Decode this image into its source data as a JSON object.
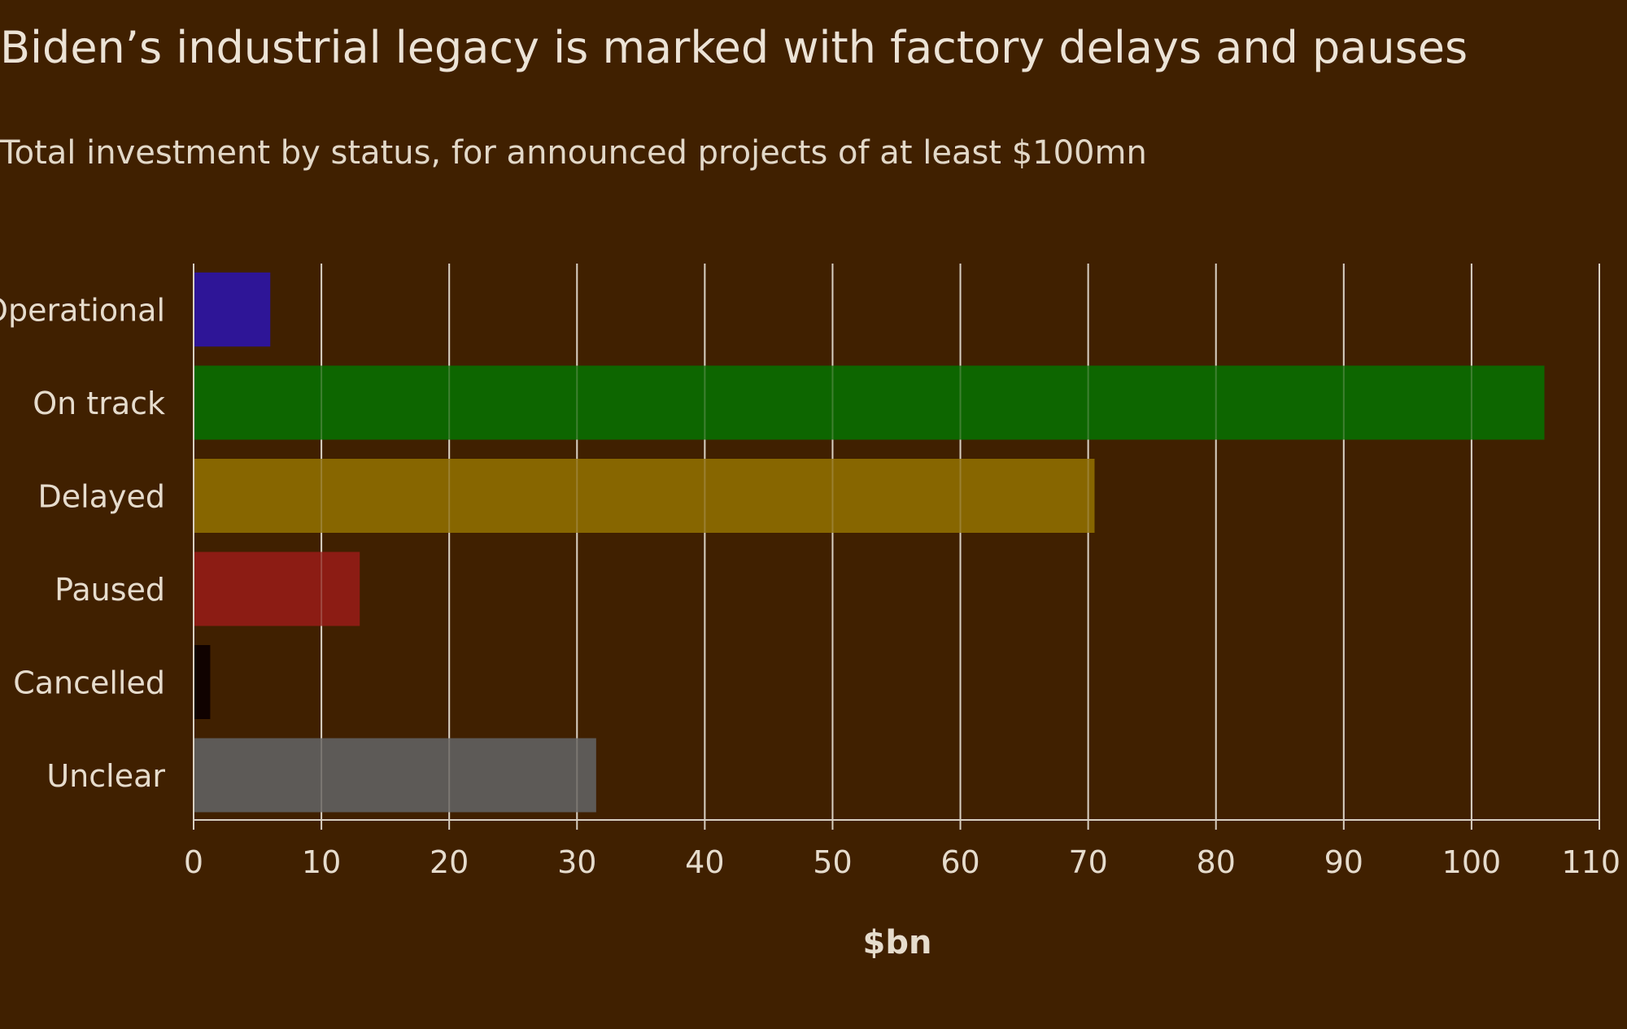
{
  "title": "Biden’s industrial legacy is marked with factory delays and pauses",
  "subtitle": "Total investment by status, for announced projects of at least $100mn",
  "chart_data": {
    "type": "bar",
    "orientation": "horizontal",
    "title": "Biden’s industrial legacy is marked with factory delays and pauses",
    "subtitle": "Total investment by status, for announced projects of at least $100mn",
    "xlabel": "$bn",
    "ylabel": "",
    "xlim": [
      0,
      110
    ],
    "xticks": [
      0,
      10,
      20,
      30,
      40,
      50,
      60,
      70,
      80,
      90,
      100,
      110
    ],
    "grid": true,
    "categories": [
      "Operational",
      "On track",
      "Delayed",
      "Paused",
      "Cancelled",
      "Unclear"
    ],
    "values": [
      6.0,
      105.7,
      70.5,
      13.0,
      1.3,
      31.5
    ],
    "colors": [
      "#2e1597",
      "#0d6600",
      "#876600",
      "#8c1c14",
      "#100200",
      "#5d5a57"
    ]
  },
  "colors": {
    "background": "#402000",
    "gridline": "#d8cfc2",
    "text": "#e6dccd"
  }
}
